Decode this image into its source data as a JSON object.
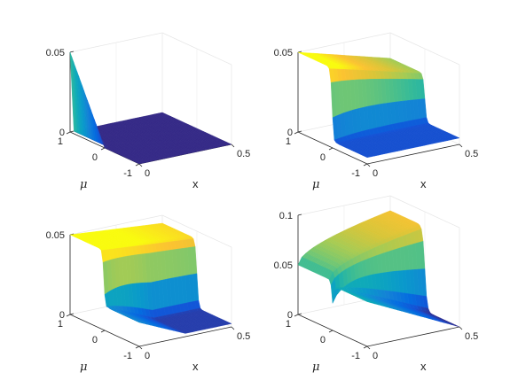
{
  "chart_data": [
    {
      "type": "surface",
      "title": "",
      "xlabel": "x",
      "ylabel": "μ",
      "zlabel": "",
      "xlim": [
        0,
        0.5
      ],
      "ylim": [
        -1,
        1
      ],
      "zlim": [
        0,
        0.05
      ],
      "xticks": [
        "0",
        "0.5"
      ],
      "yticks": [
        "-1",
        "0",
        "1"
      ],
      "zticks": [
        "0",
        "0.05"
      ],
      "profile": {
        "description_of_values": "z(x, mu): for mu > 0 the value at x=0 falls linearly from 0.05 (mu=1) to 0 (mu=0); elsewhere ~0",
        "front_mu1": [
          0.05
        ],
        "front_mu0": [
          0.0
        ],
        "plateau": 0.0
      }
    },
    {
      "type": "surface",
      "title": "",
      "xlabel": "x",
      "ylabel": "μ",
      "zlabel": "",
      "xlim": [
        0,
        0.5
      ],
      "ylim": [
        -1,
        1
      ],
      "zlim": [
        0,
        0.05
      ],
      "xticks": [
        "0",
        "0.5"
      ],
      "yticks": [
        "-1",
        "0",
        "1"
      ],
      "zticks": [
        "0",
        "0.05"
      ],
      "profile": {
        "mu_positive_level_at_x0": 0.05,
        "mu_positive_level_at_x05": 0.034,
        "mu_negative_level": 0.004,
        "dip_near_mu0": -0.008
      }
    },
    {
      "type": "surface",
      "title": "",
      "xlabel": "x",
      "ylabel": "μ",
      "zlabel": "",
      "xlim": [
        0,
        0.5
      ],
      "ylim": [
        -1,
        1
      ],
      "zlim": [
        0,
        0.05
      ],
      "xticks": [
        "0",
        "0.5"
      ],
      "yticks": [
        "-1",
        "0",
        "1"
      ],
      "zticks": [
        "0",
        "0.05"
      ],
      "profile": {
        "mu_positive_level_at_x0": 0.05,
        "mu_positive_level_at_x05": 0.045,
        "mu_negative_level_at_x0": 0.015,
        "mu_negative_level_at_x05": 0.002,
        "dip_near_mu0": -0.01
      }
    },
    {
      "type": "surface",
      "title": "",
      "xlabel": "x",
      "ylabel": "μ",
      "zlabel": "",
      "xlim": [
        0,
        0.5
      ],
      "ylim": [
        -1,
        1
      ],
      "zlim": [
        0,
        0.1
      ],
      "xticks": [
        "0",
        "0.5"
      ],
      "yticks": [
        "-1",
        "0",
        "1"
      ],
      "zticks": [
        "0",
        "0.05",
        "0.1"
      ],
      "profile": {
        "mu_positive_level_at_x0": 0.05,
        "mu_positive_level_at_x05": 0.085,
        "mu_negative_level_at_x0": 0.045,
        "mu_negative_level_at_x05": 0.0,
        "dip_near_mu0": -0.02
      }
    }
  ]
}
